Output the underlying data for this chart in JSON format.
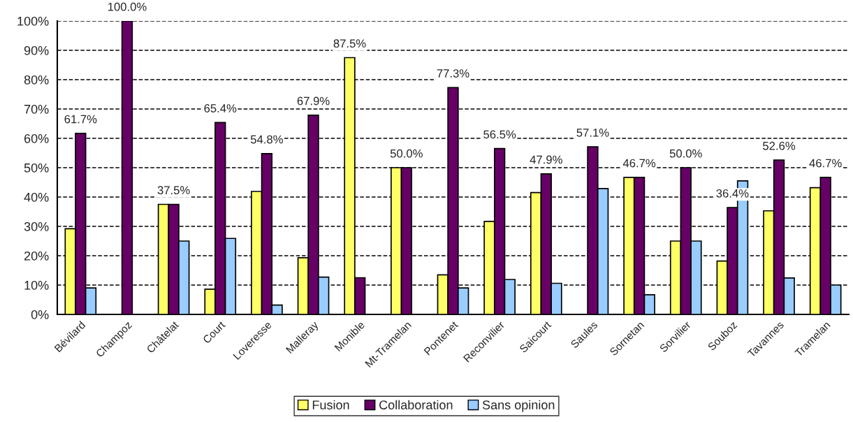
{
  "chart_data": {
    "type": "bar",
    "categories": [
      "Bévilard",
      "Champoz",
      "Châtelat",
      "Court",
      "Loveresse",
      "Malleray",
      "Monible",
      "Mt-Tramelan",
      "Pontenet",
      "Reconvilier",
      "Saicourt",
      "Saules",
      "Sornetan",
      "Sorvilier",
      "Souboz",
      "Tavannes",
      "Tramelan"
    ],
    "series": [
      {
        "name": "Fusion",
        "color": "#ffff66",
        "values": [
          29.2,
          null,
          37.5,
          8.6,
          41.9,
          19.3,
          87.5,
          50.0,
          13.5,
          31.7,
          41.5,
          null,
          46.7,
          25.0,
          18.2,
          35.3,
          43.2
        ],
        "value_labels": [
          null,
          null,
          null,
          null,
          null,
          null,
          "87.5%",
          null,
          null,
          null,
          null,
          null,
          null,
          null,
          null,
          null,
          null
        ]
      },
      {
        "name": "Collaboration",
        "color": "#660066",
        "values": [
          61.7,
          100.0,
          37.5,
          65.4,
          54.8,
          67.9,
          12.5,
          50.0,
          77.3,
          56.5,
          47.9,
          57.1,
          46.7,
          50.0,
          36.4,
          52.6,
          46.7
        ],
        "value_labels": [
          "61.7%",
          "100.0%",
          "37.5%",
          "65.4%",
          "54.8%",
          "67.9%",
          null,
          "50.0%",
          "77.3%",
          "56.5%",
          "47.9%",
          "57.1%",
          "46.7%",
          "50.0%",
          "36.4%",
          "52.6%",
          "46.7%"
        ]
      },
      {
        "name": "Sans opinion",
        "color": "#99ccff",
        "values": [
          9.0,
          null,
          25.0,
          25.9,
          3.2,
          12.7,
          null,
          null,
          9.0,
          11.9,
          10.6,
          42.9,
          6.7,
          25.0,
          45.5,
          12.4,
          10.0
        ]
      }
    ],
    "ylim": [
      0,
      100
    ],
    "yticks": [
      {
        "value": 0,
        "label": "0%"
      },
      {
        "value": 10,
        "label": "10%"
      },
      {
        "value": 20,
        "label": "20%"
      },
      {
        "value": 30,
        "label": "30%"
      },
      {
        "value": 40,
        "label": "40%"
      },
      {
        "value": 50,
        "label": "50%"
      },
      {
        "value": 60,
        "label": "60%"
      },
      {
        "value": 70,
        "label": "70%"
      },
      {
        "value": 80,
        "label": "80%"
      },
      {
        "value": 90,
        "label": "90%"
      },
      {
        "value": 100,
        "label": "100%"
      }
    ],
    "grid": "y",
    "legend": "bottom"
  }
}
